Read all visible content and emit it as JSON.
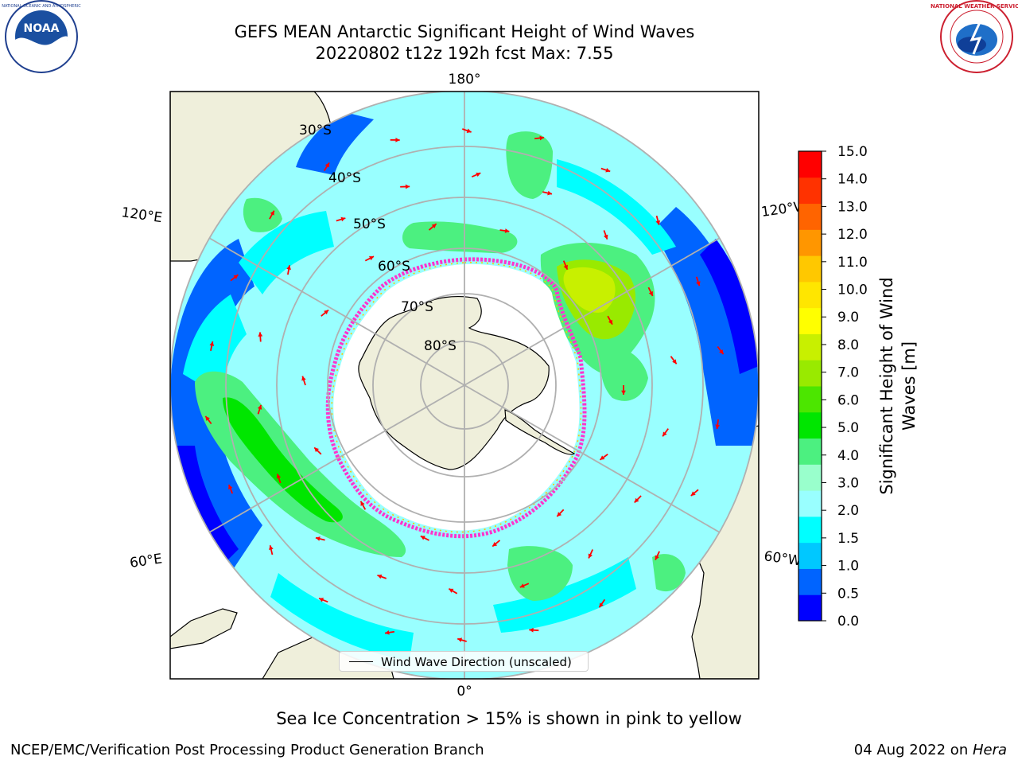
{
  "title": {
    "line1": "GEFS MEAN Antarctic Significant Height of Wind Waves",
    "line2": "20220802 t12z 192h fcst   Max: 7.55"
  },
  "logos": {
    "left": {
      "name": "NOAA",
      "ring_text": "NATIONAL OCEANIC AND ATMOSPHERIC ADMINISTRATION · U.S. DEPARTMENT OF COMMERCE"
    },
    "right": {
      "name": "NATIONAL WEATHER SERVICE"
    }
  },
  "map": {
    "longitude_labels": {
      "top": "180°",
      "bottom": "0°",
      "upper_left": "120°E",
      "lower_left": "60°E",
      "upper_right": "120°W",
      "lower_right": "60°W"
    },
    "latitude_labels": [
      "30°S",
      "40°S",
      "50°S",
      "60°S",
      "70°S",
      "80°S"
    ],
    "legend_label": "Wind Wave Direction (unscaled)",
    "colors": {
      "land": "#efefdb",
      "ice_edge": "#ff33cc",
      "grid": "#b0b0b0",
      "arrow": "#ff0000"
    }
  },
  "colorbar": {
    "label_line1": "Significant Height of Wind",
    "label_line2": "Waves [m]",
    "ticks": [
      "0.0",
      "0.5",
      "1.0",
      "1.5",
      "2.0",
      "3.0",
      "4.0",
      "5.0",
      "6.0",
      "7.0",
      "8.0",
      "9.0",
      "10.0",
      "11.0",
      "12.0",
      "13.0",
      "14.0",
      "15.0"
    ],
    "colors": [
      "#0000ff",
      "#0064ff",
      "#00c8ff",
      "#00ffff",
      "#99ffff",
      "#99ffcc",
      "#4cf080",
      "#00e600",
      "#4ce600",
      "#99ea00",
      "#c8f000",
      "#ffff00",
      "#ffe600",
      "#ffc800",
      "#ff9600",
      "#ff6400",
      "#ff3200",
      "#ff0000"
    ]
  },
  "footer": {
    "note": "Sea Ice Concentration > 15% is shown in pink to yellow",
    "credit": "NCEP/EMC/Verification Post Processing Product Generation Branch",
    "date": "04 Aug 2022 on ",
    "machine": "Hera"
  }
}
